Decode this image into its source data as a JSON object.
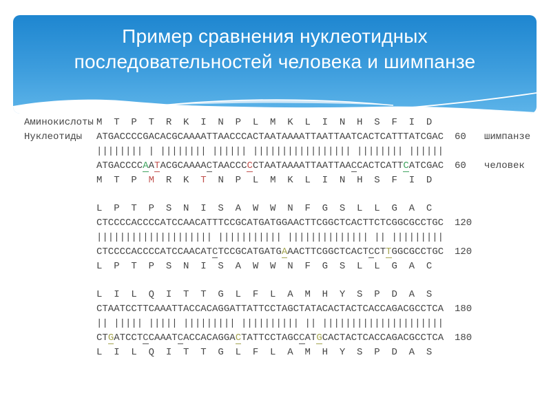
{
  "slide": {
    "title_lines": [
      "Пример сравнения нуклеотидных",
      "последовательностей человека и шимпанзе"
    ]
  },
  "colors": {
    "banner_top": "#1e86d0",
    "banner_mid": "#3d9ddd",
    "banner_bottom": "#5db4e9",
    "wave_lens": "#cfe7f7",
    "seq_text": "#444444",
    "hl": {
      "green": "#3fa35f",
      "red": "#c0504d",
      "olive": "#a2a24e",
      "dark": "#555555"
    }
  },
  "alignment": {
    "left_labels": {
      "amino": "Аминокислоты",
      "nucleo": "Нуклеотиды"
    },
    "species": {
      "top": "шимпанзе",
      "bottom": "человек"
    },
    "blocks": [
      {
        "number": "60",
        "show_left_labels": true,
        "show_species": true,
        "aa_top": [
          "M",
          "T",
          "P",
          "T",
          "R",
          "K",
          "I",
          "N",
          "P",
          "L",
          "M",
          "K",
          "L",
          "I",
          "N",
          "H",
          "S",
          "F",
          "I",
          "D"
        ],
        "aa_top_hl": {},
        "nt_top": "ATGACCCCGACACGCAAAATTAACCCACTAATAAAATTAATTAATCACTCATTTATCGAC",
        "pipes": "|||||||| | |||||||| |||||| ||||||||||||||||| |||||||| ||||||",
        "nt_bottom": "ATGACCCCAATACGCAAAACTAACCCCCTAATAAAATTAATTAACCACTCATTCATCGAC",
        "nt_bottom_hl": {
          "9": "green",
          "11": "red",
          "20": "dark",
          "27": "red",
          "45": "dark",
          "54": "green"
        },
        "aa_bottom": [
          "M",
          "T",
          "P",
          "M",
          "R",
          "K",
          "T",
          "N",
          "P",
          "L",
          "M",
          "K",
          "L",
          "I",
          "N",
          "H",
          "S",
          "F",
          "I",
          "D"
        ],
        "aa_bottom_hl": {
          "4": "red",
          "7": "red"
        }
      },
      {
        "number": "120",
        "show_left_labels": false,
        "show_species": false,
        "aa_top": [
          "L",
          "P",
          "T",
          "P",
          "S",
          "N",
          "I",
          "S",
          "A",
          "W",
          "W",
          "N",
          "F",
          "G",
          "S",
          "L",
          "L",
          "G",
          "A",
          "C"
        ],
        "aa_top_hl": {},
        "nt_top": "CTCCCCACCCCATCCAACATTTCCGCATGATGGAACTTCGGCTCACTTCTCGGCGCCTGC",
        "pipes": "|||||||||||||||||||| ||||||||||| |||||||||||||| || |||||||||",
        "nt_bottom": "CTCCCCACCCCATCCAACATCTCCGCATGATGAAACTTCGGCTCACTCCTTGGCGCCTGC",
        "nt_bottom_hl": {
          "21": "dark",
          "33": "olive",
          "48": "dark",
          "51": "olive"
        },
        "aa_bottom": [
          "L",
          "P",
          "T",
          "P",
          "S",
          "N",
          "I",
          "S",
          "A",
          "W",
          "W",
          "N",
          "F",
          "G",
          "S",
          "L",
          "L",
          "G",
          "A",
          "C"
        ],
        "aa_bottom_hl": {}
      },
      {
        "number": "180",
        "show_left_labels": false,
        "show_species": false,
        "aa_top": [
          "L",
          "I",
          "L",
          "Q",
          "I",
          "T",
          "T",
          "G",
          "L",
          "F",
          "L",
          "A",
          "M",
          "H",
          "Y",
          "S",
          "P",
          "D",
          "A",
          "S"
        ],
        "aa_top_hl": {},
        "nt_top": "CTAATCCTTCAAATTACCACAGGATTATTCCTAGCTATACACTACTCACCAGACGCCTCA",
        "pipes": "|| ||||| ||||| ||||||||| |||||||||| || |||||||||||||||||||||",
        "nt_bottom": "CTGATCCTCCAAATCACCACAGGACTATTCCTAGCCATGCACTACTCACCAGACGCCTCA",
        "nt_bottom_hl": {
          "3": "olive",
          "9": "dark",
          "15": "dark",
          "25": "olive",
          "36": "dark",
          "39": "olive"
        },
        "aa_bottom": [
          "L",
          "I",
          "L",
          "Q",
          "I",
          "T",
          "T",
          "G",
          "L",
          "F",
          "L",
          "A",
          "M",
          "H",
          "Y",
          "S",
          "P",
          "D",
          "A",
          "S"
        ],
        "aa_bottom_hl": {}
      }
    ]
  }
}
